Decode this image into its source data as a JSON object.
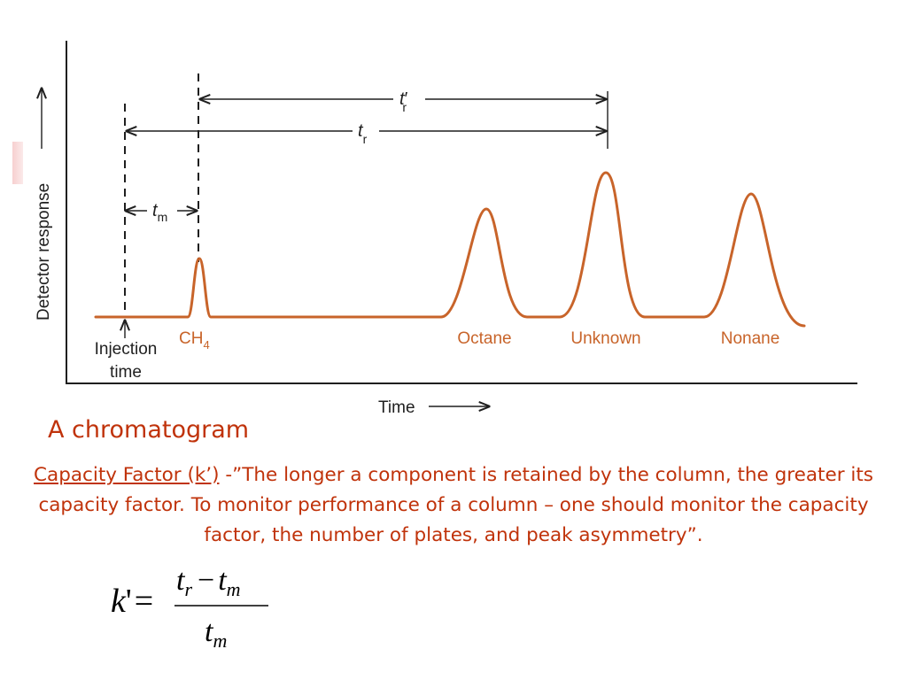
{
  "diagram": {
    "y_axis_label": "Detector response",
    "x_axis_label": "Time",
    "injection_label_line1": "Injection",
    "injection_label_line2": "time",
    "tm_label": {
      "base": "t",
      "sub": "m"
    },
    "tr_label": {
      "base": "t",
      "sub": "r"
    },
    "tr_prime_label": {
      "base": "t",
      "prime": "′",
      "sub": "r"
    },
    "ch4_label": {
      "base": "CH",
      "sub": "4"
    },
    "peaks": [
      "Octane",
      "Unknown",
      "Nonane"
    ],
    "trace_color": "#c8642a",
    "label_color": "#c8642a"
  },
  "caption": "A chromatogram",
  "description": {
    "term": "Capacity Factor (k’)",
    "text": " -”The longer a component is retained by the column, the greater its capacity factor.  To monitor performance of a column – one should monitor the capacity factor, the number of plates, and peak asymmetry”."
  },
  "formula": {
    "lhs": "k",
    "prime": "'",
    "equals": "=",
    "num_t1": "t",
    "num_sub1": "r",
    "minus": "−",
    "num_t2": "t",
    "num_sub2": "m",
    "den_t": "t",
    "den_sub": "m"
  },
  "accent_color": "#c0330b"
}
